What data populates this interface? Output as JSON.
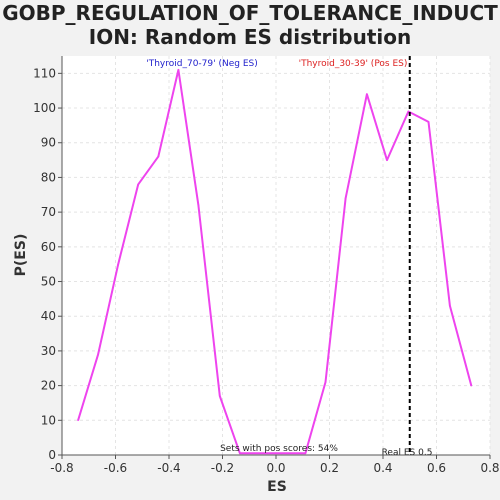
{
  "chart_data": {
    "type": "line",
    "title": "GOBP_REGULATION_OF_TOLERANCE_INDUCTION: Random ES distribution",
    "title_line1": "GOBP_REGULATION_OF_TOLERANCE_INDUCT",
    "title_line2": "ION: Random ES distribution",
    "xlabel": "ES",
    "ylabel": "P(ES)",
    "xlim": [
      -0.8,
      0.8
    ],
    "ylim": [
      0,
      115
    ],
    "x_ticks": [
      "-0.8",
      "-0.6",
      "-0.4",
      "-0.2",
      "0.0",
      "0.2",
      "0.4",
      "0.6",
      "0.8"
    ],
    "y_ticks": [
      "0",
      "10",
      "20",
      "30",
      "40",
      "50",
      "60",
      "70",
      "80",
      "90",
      "100",
      "110"
    ],
    "grid": true,
    "series": [
      {
        "color": "#ee44ee",
        "x": [
          -0.74,
          -0.665,
          -0.59,
          -0.515,
          -0.44,
          -0.365,
          -0.29,
          -0.21,
          -0.135,
          -0.06,
          0.02,
          0.11,
          0.185,
          0.26,
          0.34,
          0.415,
          0.495,
          0.57,
          0.65,
          0.73
        ],
        "y": [
          10,
          29,
          55,
          78,
          86,
          111,
          72,
          17,
          0.5,
          0.5,
          0.5,
          0.5,
          21,
          74,
          104,
          85,
          99,
          96,
          43,
          20
        ]
      }
    ],
    "real_es": 0.5,
    "annotations": {
      "neg_label": "'Thyroid_70-79' (Neg ES)",
      "pos_label": "'Thyroid_30-39' (Pos ES)",
      "sets_label": "Sets with pos scores: 54%",
      "real_es_label": "Real ES 0.5"
    },
    "colors": {
      "line": "#ee44ee",
      "neg_label": "#2222cc",
      "pos_label": "#dd2222",
      "real_es_line": "#000000"
    }
  }
}
